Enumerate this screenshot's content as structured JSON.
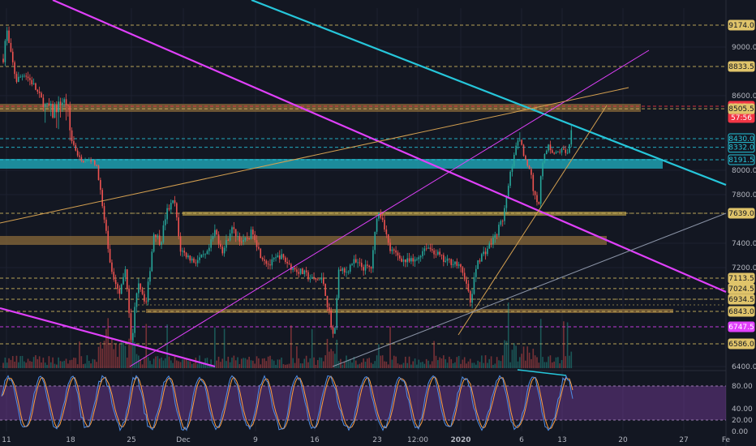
{
  "chart_data": {
    "type": "candlestick",
    "title": "",
    "price_axis": {
      "ticks": [
        "9000.0",
        "8600.0",
        "8000.0",
        "7800.0",
        "7400.0",
        "7200.0",
        "6400.0"
      ],
      "ylim": [
        6400,
        9300
      ]
    },
    "price_labels": [
      {
        "value": "9174.0",
        "kind": "level",
        "color": "#e0c46a"
      },
      {
        "value": "8833.5",
        "kind": "level",
        "color": "#e0c46a"
      },
      {
        "value": "8512.0",
        "kind": "current",
        "color": "#f23645"
      },
      {
        "value": "57:56",
        "kind": "countdown",
        "color": "#f23645"
      },
      {
        "value": "8505.5",
        "kind": "level",
        "color": "#e0c46a"
      },
      {
        "value": "8430.0",
        "kind": "cyan",
        "color": "#26c6da"
      },
      {
        "value": "8332.0",
        "kind": "cyan",
        "color": "#26c6da"
      },
      {
        "value": "8191.5",
        "kind": "cyan",
        "color": "#26c6da"
      },
      {
        "value": "7639.0",
        "kind": "level",
        "color": "#e0c46a"
      },
      {
        "value": "7113.5",
        "kind": "level",
        "color": "#e0c46a"
      },
      {
        "value": "7024.5",
        "kind": "level",
        "color": "#e0c46a"
      },
      {
        "value": "6934.5",
        "kind": "level",
        "color": "#e0c46a"
      },
      {
        "value": "6843.0",
        "kind": "level",
        "color": "#e0c46a"
      },
      {
        "value": "6747.5",
        "kind": "magenta",
        "color": "#e040fb"
      },
      {
        "value": "6586.0",
        "kind": "level",
        "color": "#e0c46a"
      }
    ],
    "x_axis": {
      "ticks": [
        "11",
        "18",
        "25",
        "Dec",
        "9",
        "16",
        "23",
        "12:00",
        "2020",
        "6",
        "13",
        "20",
        "27",
        "Fe"
      ]
    },
    "oscillator": {
      "ticks": [
        "80.00",
        "40.00",
        "20.00",
        "0.00"
      ],
      "ylim": [
        0,
        100
      ],
      "band": [
        20,
        80
      ]
    },
    "colors": {
      "background": "#131722",
      "up": "#26a69a",
      "down": "#ef5350",
      "cyan_line": "#26c6da",
      "magenta_line": "#e040fb",
      "orange_line": "#e0a040",
      "zone_orange": "#8a6a3a",
      "zone_cyan": "#1fa0b0"
    }
  }
}
